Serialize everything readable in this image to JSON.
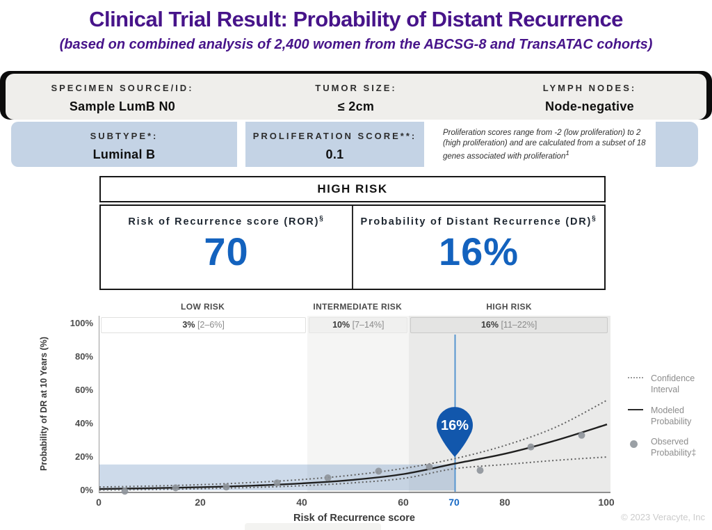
{
  "title": "Clinical Trial Result: Probability of Distant Recurrence",
  "subtitle": "(based on combined analysis of 2,400 women from the ABCSG-8 and TransATAC cohorts)",
  "specimen_bar": {
    "fields": [
      {
        "label": "SPECIMEN SOURCE/ID:",
        "value": "Sample LumB N0"
      },
      {
        "label": "TUMOR SIZE:",
        "value": "≤ 2cm"
      },
      {
        "label": "LYMPH NODES:",
        "value": "Node-negative"
      }
    ]
  },
  "subtype_bar": {
    "fields": [
      {
        "label": "SUBTYPE*:",
        "value": "Luminal B"
      },
      {
        "label": "PROLIFERATION SCORE**:",
        "value": "0.1"
      }
    ],
    "note": "Proliferation scores range from -2 (low proliferation) to 2 (high proliferation) and are calculated from a subset of 18 genes associated with proliferation",
    "note_superscript": "1"
  },
  "risk_panel": {
    "risk_category": "HIGH RISK",
    "ror": {
      "label": "Risk of Recurrence score (ROR)",
      "superscript": "§",
      "value": "70"
    },
    "dr": {
      "label": "Probability of Distant Recurrence (DR)",
      "superscript": "§",
      "value": "16%"
    }
  },
  "chart_data": {
    "type": "line",
    "xlabel": "Risk of Recurrence score",
    "ylabel": "Probability of DR at 10 Years (%)",
    "xlim": [
      0,
      100
    ],
    "ylim": [
      0,
      100
    ],
    "x_ticks": [
      0,
      20,
      40,
      60,
      70,
      80,
      100
    ],
    "highlighted_x_tick": 70,
    "y_ticks": [
      0,
      20,
      40,
      60,
      80,
      100
    ],
    "grid": false,
    "legend_position": "right",
    "zones": [
      {
        "label": "LOW RISK",
        "value": "3%",
        "range": "[2–6%]",
        "x_start": 0,
        "x_end": 41
      },
      {
        "label": "INTERMEDIATE RISK",
        "value": "10%",
        "range": "[7–14%]",
        "x_start": 41,
        "x_end": 61
      },
      {
        "label": "HIGH RISK",
        "value": "16%",
        "range": "[11–22%]",
        "x_start": 61,
        "x_end": 100
      }
    ],
    "highlight_region": {
      "x_start": 0,
      "x_end": 70,
      "y_start": 0,
      "y_end": 15.5
    },
    "marker": {
      "x": 70,
      "y": 16,
      "label": "16%"
    },
    "series": [
      {
        "name": "Confidence Interval (upper)",
        "style": "dotted",
        "x": [
          0,
          10,
          20,
          30,
          40,
          50,
          60,
          70,
          80,
          90,
          100
        ],
        "y": [
          2.0,
          2.6,
          3.4,
          4.7,
          6.5,
          9.2,
          13.2,
          19,
          27,
          38,
          54
        ]
      },
      {
        "name": "Modeled Probability",
        "style": "solid",
        "x": [
          0,
          10,
          20,
          30,
          40,
          50,
          60,
          70,
          80,
          90,
          100
        ],
        "y": [
          0.8,
          1.3,
          1.9,
          2.8,
          4.2,
          6.3,
          9.8,
          16,
          22,
          30,
          39.5
        ]
      },
      {
        "name": "Confidence Interval (lower)",
        "style": "dotted",
        "x": [
          0,
          10,
          20,
          30,
          40,
          50,
          60,
          70,
          80,
          90,
          100
        ],
        "y": [
          0.2,
          0.5,
          1.0,
          1.7,
          2.8,
          4.5,
          7.2,
          13,
          15.5,
          18,
          20
        ]
      },
      {
        "name": "Observed Probability",
        "style": "points",
        "x": [
          5,
          15,
          25,
          35,
          45,
          55,
          65,
          75,
          85,
          95
        ],
        "y": [
          -0.5,
          1.5,
          2,
          4.5,
          7.5,
          11.5,
          14,
          12,
          26,
          33
        ]
      }
    ]
  },
  "legend": [
    {
      "style": "dotted",
      "label": "Confidence Interval"
    },
    {
      "style": "solid",
      "label": "Modeled Probability"
    },
    {
      "style": "point",
      "label": "Observed Probability‡"
    }
  ],
  "copyright": "© 2023 Veracyte, Inc",
  "colors": {
    "title_purple": "#47148A",
    "accent_blue": "#1362BE",
    "marker_blue": "#1257AC",
    "tick_blue": "#1668C4",
    "band_blue": "#C4D3E5",
    "highlight_blue": "rgba(104,144,192,0.33)",
    "vertical_line_blue": "#5795D0"
  }
}
